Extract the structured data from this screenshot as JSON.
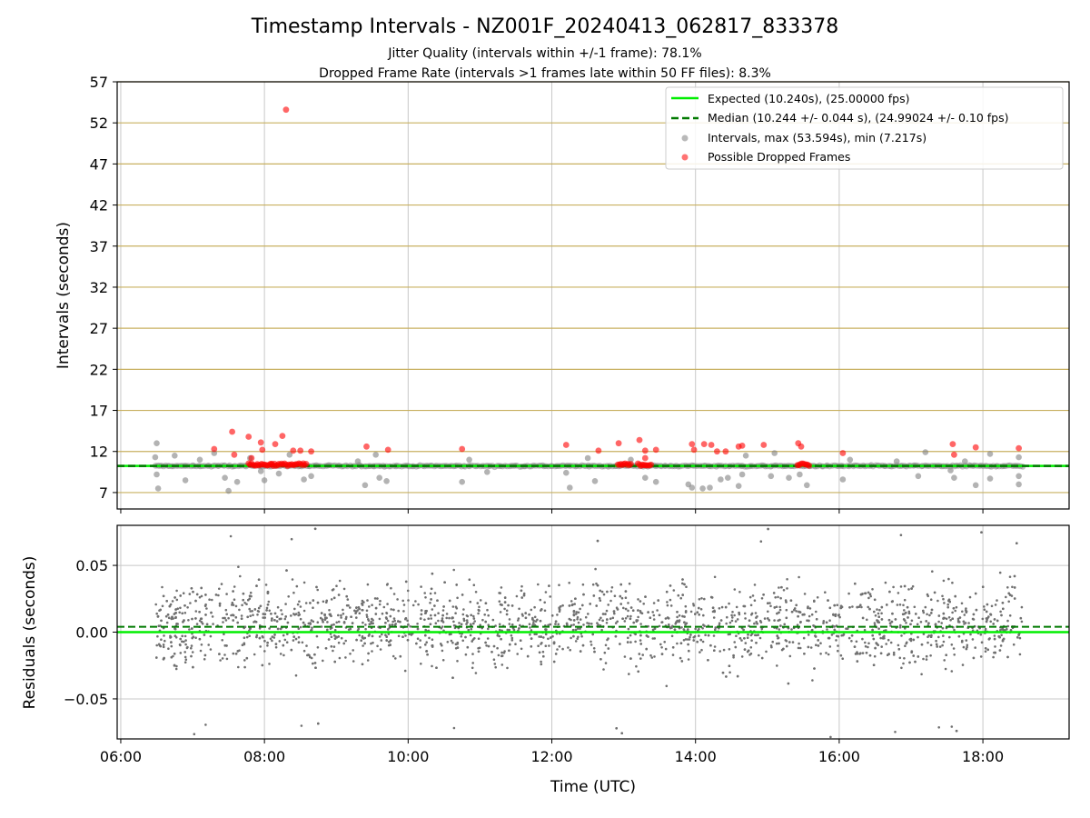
{
  "chart_data": [
    {
      "type": "scatter",
      "title": "Timestamp Intervals - NZ001F_20240413_062817_833378",
      "subtitle_lines": [
        "Jitter Quality (intervals within +/-1 frame): 78.1%",
        "Dropped Frame Rate (intervals >1 frames late within 50 FF files): 8.3%"
      ],
      "ylabel": "Intervals (seconds)",
      "ylim": [
        5,
        57
      ],
      "yticks": [
        7,
        12,
        17,
        22,
        27,
        32,
        37,
        42,
        47,
        52,
        57
      ],
      "xlim_hours": [
        5.95,
        19.2
      ],
      "grid": true,
      "legend_position": "top-right",
      "legend": [
        "Expected (10.240s), (25.00000 fps)",
        "Median (10.244 +/- 0.044 s), (24.99024 +/- 0.10 fps)",
        "Intervals, max (53.594s), min (7.217s)",
        "Possible Dropped Frames"
      ],
      "expected": 10.24,
      "median": 10.244,
      "colors": {
        "expected": "#00ee00",
        "median": "#007a00",
        "intervals": "#808080",
        "dropped": "#ff0000",
        "hgrid": "#c8b060"
      },
      "outliers": [
        [
          6.5,
          13.0
        ],
        [
          6.52,
          7.5
        ],
        [
          6.48,
          11.3
        ],
        [
          6.5,
          9.2
        ],
        [
          6.75,
          11.5
        ],
        [
          6.9,
          8.5
        ],
        [
          7.1,
          11.0
        ],
        [
          7.3,
          11.8
        ],
        [
          7.45,
          8.8
        ],
        [
          7.62,
          8.3
        ],
        [
          7.5,
          7.2
        ],
        [
          7.8,
          11.2
        ],
        [
          7.95,
          9.6
        ],
        [
          8.0,
          8.5
        ],
        [
          8.2,
          9.3
        ],
        [
          8.35,
          11.6
        ],
        [
          8.55,
          8.6
        ],
        [
          8.65,
          9.0
        ],
        [
          9.3,
          10.8
        ],
        [
          9.4,
          7.9
        ],
        [
          9.55,
          11.6
        ],
        [
          9.6,
          8.8
        ],
        [
          9.7,
          8.4
        ],
        [
          10.75,
          8.3
        ],
        [
          10.85,
          11.0
        ],
        [
          11.1,
          9.5
        ],
        [
          12.2,
          9.4
        ],
        [
          12.25,
          7.6
        ],
        [
          12.5,
          11.2
        ],
        [
          12.6,
          8.4
        ],
        [
          13.1,
          11.0
        ],
        [
          13.3,
          8.8
        ],
        [
          13.45,
          8.3
        ],
        [
          13.9,
          8.0
        ],
        [
          13.95,
          7.6
        ],
        [
          14.1,
          7.5
        ],
        [
          14.2,
          7.6
        ],
        [
          14.35,
          8.6
        ],
        [
          14.45,
          8.8
        ],
        [
          14.6,
          7.8
        ],
        [
          14.65,
          9.2
        ],
        [
          14.7,
          11.5
        ],
        [
          15.05,
          9.0
        ],
        [
          15.1,
          11.8
        ],
        [
          15.3,
          8.8
        ],
        [
          15.45,
          9.2
        ],
        [
          15.55,
          7.9
        ],
        [
          16.05,
          8.6
        ],
        [
          16.15,
          11.0
        ],
        [
          16.8,
          10.8
        ],
        [
          17.1,
          9.0
        ],
        [
          17.2,
          11.9
        ],
        [
          17.55,
          9.7
        ],
        [
          17.6,
          8.8
        ],
        [
          17.75,
          10.8
        ],
        [
          17.9,
          7.9
        ],
        [
          18.1,
          8.7
        ],
        [
          18.1,
          11.7
        ],
        [
          18.5,
          9.0
        ],
        [
          18.5,
          11.3
        ],
        [
          18.5,
          8.0
        ]
      ],
      "dropped": [
        [
          7.3,
          12.3
        ],
        [
          7.55,
          14.4
        ],
        [
          7.58,
          11.6
        ],
        [
          7.78,
          13.8
        ],
        [
          7.82,
          11.2
        ],
        [
          7.95,
          13.1
        ],
        [
          7.97,
          12.2
        ],
        [
          8.1,
          10.5
        ],
        [
          8.15,
          12.9
        ],
        [
          8.25,
          13.9
        ],
        [
          8.3,
          53.6
        ],
        [
          8.4,
          12.1
        ],
        [
          8.5,
          12.1
        ],
        [
          8.65,
          12.0
        ],
        [
          9.42,
          12.6
        ],
        [
          9.72,
          12.2
        ],
        [
          10.75,
          12.3
        ],
        [
          12.2,
          12.8
        ],
        [
          12.65,
          12.1
        ],
        [
          12.93,
          13.0
        ],
        [
          13.22,
          13.4
        ],
        [
          13.3,
          12.1
        ],
        [
          13.3,
          11.2
        ],
        [
          13.45,
          12.2
        ],
        [
          13.95,
          12.9
        ],
        [
          13.98,
          12.2
        ],
        [
          14.12,
          12.9
        ],
        [
          14.22,
          12.8
        ],
        [
          14.3,
          12.0
        ],
        [
          14.42,
          12.0
        ],
        [
          14.6,
          12.6
        ],
        [
          14.65,
          12.7
        ],
        [
          14.95,
          12.8
        ],
        [
          15.43,
          13.0
        ],
        [
          15.47,
          12.6
        ],
        [
          16.05,
          11.8
        ],
        [
          17.58,
          12.9
        ],
        [
          17.6,
          11.6
        ],
        [
          17.9,
          12.5
        ],
        [
          18.5,
          12.4
        ]
      ],
      "dropped_clusters": [
        {
          "x_start": 7.78,
          "x_end": 8.2,
          "y": 10.4
        },
        {
          "x_start": 8.22,
          "x_end": 8.58,
          "y": 10.4
        },
        {
          "x_start": 12.92,
          "x_end": 13.1,
          "y": 10.4
        },
        {
          "x_start": 13.2,
          "x_end": 13.38,
          "y": 10.4
        },
        {
          "x_start": 15.42,
          "x_end": 15.58,
          "y": 10.4
        }
      ]
    },
    {
      "type": "scatter",
      "xlabel": "Time (UTC)",
      "ylabel": "Residuals (seconds)",
      "ylim": [
        -0.08,
        0.08
      ],
      "yticks": [
        0.05,
        0.0,
        -0.05
      ],
      "ytick_labels": [
        "0.05",
        "0.00",
        "−0.05"
      ],
      "xticks_hours": [
        6,
        8,
        10,
        12,
        14,
        16,
        18
      ],
      "xtick_labels": [
        "06:00",
        "08:00",
        "10:00",
        "12:00",
        "14:00",
        "16:00",
        "18:00"
      ],
      "x_range_hours": [
        6.48,
        18.55
      ],
      "expected_residual": 0.0,
      "median_residual": 0.004,
      "grid": true,
      "colors": {
        "points": "#707070",
        "expected": "#00ee00",
        "median": "#007a00"
      }
    }
  ]
}
